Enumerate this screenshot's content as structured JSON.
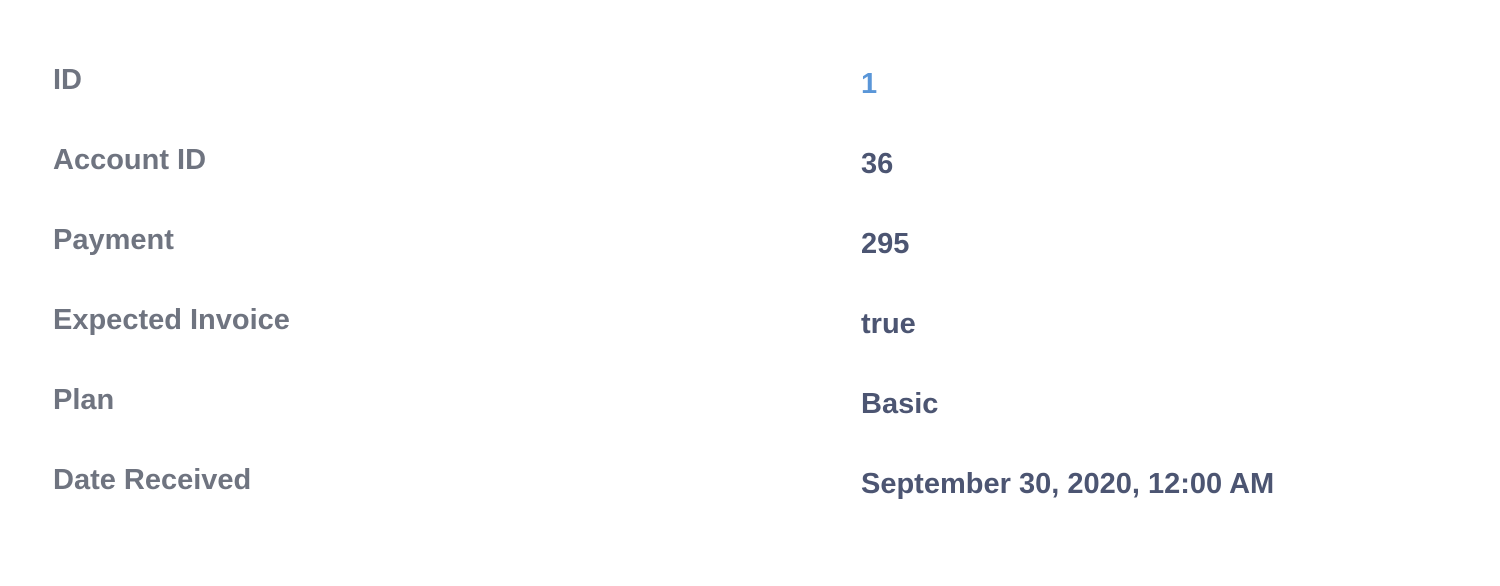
{
  "rows": [
    {
      "label": "ID",
      "value": "1"
    },
    {
      "label": "Account ID",
      "value": "36"
    },
    {
      "label": "Payment",
      "value": "295"
    },
    {
      "label": "Expected Invoice",
      "value": "true"
    },
    {
      "label": "Plan",
      "value": "Basic"
    },
    {
      "label": "Date Received",
      "value": "September 30, 2020, 12:00 AM"
    }
  ],
  "colors": {
    "label": "#6f7480",
    "value": "#4c5572",
    "link": "#5a96d8"
  }
}
